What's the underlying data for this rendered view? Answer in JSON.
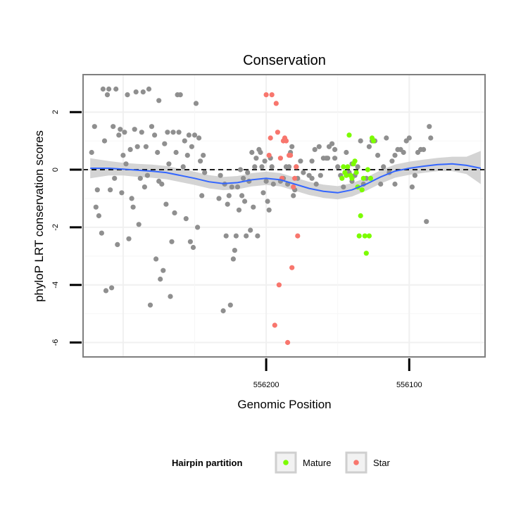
{
  "chart_data": {
    "type": "scatter",
    "title": "Conservation",
    "xlabel": "Genomic Position",
    "ylabel": "phyloP LRT conservation scores",
    "x_reversed": true,
    "xlim": [
      556047,
      556328
    ],
    "ylim": [
      -6.5,
      3.3
    ],
    "x_ticks": [
      556200,
      556100
    ],
    "x_tick_labels": [
      "556200",
      "556100"
    ],
    "y_ticks": [
      2,
      0,
      -2,
      -4,
      -6
    ],
    "y_tick_labels": [
      "2",
      "0",
      "-2",
      "-4",
      "-6"
    ],
    "grid": true,
    "reference_line": {
      "y": 0,
      "style": "dashed",
      "color": "#000000"
    },
    "legend": {
      "title": "Hairpin partition",
      "position": "bottom",
      "entries": [
        {
          "label": "Mature",
          "color": "#7cfc00"
        },
        {
          "label": "Star",
          "color": "#f8766d"
        }
      ]
    },
    "colors": {
      "other": "#8f8f8f",
      "Mature": "#7cfc00",
      "Star": "#f8766d",
      "smooth_line": "#3366ff",
      "smooth_band": "#cccccc"
    },
    "smooth": {
      "x": [
        556323,
        556310,
        556300,
        556290,
        556280,
        556270,
        556260,
        556250,
        556240,
        556230,
        556220,
        556210,
        556200,
        556190,
        556180,
        556170,
        556160,
        556150,
        556140,
        556130,
        556120,
        556110,
        556100,
        556090,
        556080,
        556070,
        556060,
        556050
      ],
      "y": [
        0.05,
        0.05,
        0.02,
        -0.02,
        -0.05,
        -0.1,
        -0.2,
        -0.3,
        -0.42,
        -0.48,
        -0.45,
        -0.35,
        -0.3,
        -0.35,
        -0.5,
        -0.65,
        -0.75,
        -0.8,
        -0.7,
        -0.5,
        -0.25,
        -0.05,
        0.05,
        0.12,
        0.18,
        0.2,
        0.15,
        0.05
      ],
      "lower": [
        -0.3,
        -0.2,
        -0.2,
        -0.25,
        -0.28,
        -0.33,
        -0.43,
        -0.53,
        -0.65,
        -0.71,
        -0.68,
        -0.58,
        -0.53,
        -0.58,
        -0.73,
        -0.88,
        -0.98,
        -1.03,
        -0.93,
        -0.73,
        -0.48,
        -0.28,
        -0.18,
        -0.11,
        -0.05,
        -0.05,
        -0.15,
        -0.5
      ],
      "upper": [
        0.4,
        0.3,
        0.24,
        0.2,
        0.18,
        0.13,
        0.03,
        -0.07,
        -0.19,
        -0.25,
        -0.22,
        -0.12,
        -0.07,
        -0.12,
        -0.27,
        -0.42,
        -0.52,
        -0.57,
        -0.47,
        -0.27,
        -0.02,
        0.18,
        0.28,
        0.35,
        0.41,
        0.45,
        0.45,
        0.65
      ]
    },
    "series": [
      {
        "name": "",
        "group": "other",
        "points": [
          [
            556322,
            0.6
          ],
          [
            556320,
            1.5
          ],
          [
            556319,
            -1.3
          ],
          [
            556318,
            -0.7
          ],
          [
            556317,
            -1.6
          ],
          [
            556315,
            -2.2
          ],
          [
            556314,
            2.8
          ],
          [
            556313,
            1.0
          ],
          [
            556312,
            -4.2
          ],
          [
            556311,
            2.6
          ],
          [
            556310,
            2.8
          ],
          [
            556309,
            -0.7
          ],
          [
            556308,
            -4.1
          ],
          [
            556307,
            1.5
          ],
          [
            556306,
            -0.3
          ],
          [
            556305,
            2.8
          ],
          [
            556304,
            -2.6
          ],
          [
            556303,
            1.2
          ],
          [
            556302,
            1.4
          ],
          [
            556301,
            -0.8
          ],
          [
            556300,
            0.5
          ],
          [
            556299,
            1.3
          ],
          [
            556298,
            0.2
          ],
          [
            556297,
            2.6
          ],
          [
            556296,
            -2.4
          ],
          [
            556295,
            0.7
          ],
          [
            556294,
            -1.0
          ],
          [
            556293,
            -1.3
          ],
          [
            556292,
            1.4
          ],
          [
            556291,
            2.7
          ],
          [
            556290,
            0.8
          ],
          [
            556289,
            -1.9
          ],
          [
            556288,
            -0.3
          ],
          [
            556287,
            1.3
          ],
          [
            556286,
            2.7
          ],
          [
            556285,
            -0.6
          ],
          [
            556284,
            0.8
          ],
          [
            556283,
            -0.2
          ],
          [
            556282,
            2.8
          ],
          [
            556281,
            -4.7
          ],
          [
            556280,
            1.5
          ],
          [
            556278,
            1.2
          ],
          [
            556277,
            -3.1
          ],
          [
            556276,
            0.6
          ],
          [
            556275,
            2.4
          ],
          [
            556274,
            -3.8
          ],
          [
            556273,
            -0.5
          ],
          [
            556272,
            -3.5
          ],
          [
            556271,
            0.9
          ],
          [
            556270,
            -1.2
          ],
          [
            556269,
            1.3
          ],
          [
            556268,
            0.2
          ],
          [
            556267,
            -4.4
          ],
          [
            556266,
            -2.5
          ],
          [
            556265,
            1.3
          ],
          [
            556264,
            -1.5
          ],
          [
            556263,
            0.6
          ],
          [
            556262,
            2.6
          ],
          [
            556261,
            1.3
          ],
          [
            556260,
            2.6
          ],
          [
            556258,
            0.1
          ],
          [
            556257,
            1.0
          ],
          [
            556256,
            -1.7
          ],
          [
            556255,
            0.5
          ],
          [
            556254,
            1.2
          ],
          [
            556253,
            -2.5
          ],
          [
            556252,
            0.8
          ],
          [
            556251,
            -2.7
          ],
          [
            556250,
            1.2
          ],
          [
            556249,
            2.3
          ],
          [
            556248,
            -2.0
          ],
          [
            556247,
            1.1
          ],
          [
            556246,
            0.3
          ],
          [
            556245,
            -0.9
          ],
          [
            556244,
            0.5
          ],
          [
            556243,
            -0.1
          ],
          [
            556233,
            -1.0
          ],
          [
            556232,
            -0.2
          ],
          [
            556230,
            -4.9
          ],
          [
            556229,
            -0.5
          ],
          [
            556228,
            -2.3
          ],
          [
            556227,
            -1.2
          ],
          [
            556226,
            -0.9
          ],
          [
            556225,
            -4.7
          ],
          [
            556224,
            -0.6
          ],
          [
            556223,
            -3.1
          ],
          [
            556222,
            -2.8
          ],
          [
            556221,
            -2.3
          ],
          [
            556220,
            -0.6
          ],
          [
            556219,
            -1.4
          ],
          [
            556218,
            0.0
          ],
          [
            556217,
            -0.9
          ],
          [
            556216,
            -0.3
          ],
          [
            556215,
            -1.1
          ],
          [
            556214,
            -2.3
          ],
          [
            556213,
            -0.1
          ],
          [
            556212,
            -0.4
          ],
          [
            556211,
            -2.1
          ],
          [
            556210,
            0.6
          ],
          [
            556209,
            -1.3
          ],
          [
            556208,
            0.1
          ],
          [
            556207,
            0.4
          ],
          [
            556206,
            -2.3
          ],
          [
            556205,
            0.7
          ],
          [
            556204,
            0.6
          ],
          [
            556203,
            0.1
          ],
          [
            556202,
            -0.8
          ],
          [
            556201,
            0.3
          ],
          [
            556200,
            -0.4
          ],
          [
            556199,
            -1.1
          ],
          [
            556198,
            -1.4
          ],
          [
            556197,
            0.4
          ],
          [
            556196,
            0.1
          ],
          [
            556195,
            -0.5
          ],
          [
            556188,
            -0.3
          ],
          [
            556186,
            0.1
          ],
          [
            556185,
            -0.5
          ],
          [
            556184,
            0.1
          ],
          [
            556183,
            0.6
          ],
          [
            556182,
            0.8
          ],
          [
            556181,
            -0.9
          ],
          [
            556180,
            -0.7
          ],
          [
            556179,
            0.1
          ],
          [
            556178,
            -0.3
          ],
          [
            556176,
            0.3
          ],
          [
            556174,
            -0.1
          ],
          [
            556170,
            -0.2
          ],
          [
            556168,
            0.3
          ],
          [
            556166,
            0.7
          ],
          [
            556165,
            -0.5
          ],
          [
            556163,
            0.8
          ],
          [
            556162,
            -0.2
          ],
          [
            556160,
            0.4
          ],
          [
            556158,
            0.4
          ],
          [
            556157,
            0.4
          ],
          [
            556156,
            0.8
          ],
          [
            556154,
            0.9
          ],
          [
            556152,
            0.7
          ],
          [
            556150,
            0.1
          ],
          [
            556148,
            -0.2
          ],
          [
            556146,
            -0.6
          ],
          [
            556144,
            0.6
          ],
          [
            556142,
            -0.1
          ],
          [
            556140,
            -0.4
          ],
          [
            556138,
            -0.2
          ],
          [
            556136,
            0.1
          ],
          [
            556134,
            1.0
          ],
          [
            556132,
            -0.5
          ],
          [
            556130,
            -0.3
          ],
          [
            556128,
            0.8
          ],
          [
            556126,
            1.0
          ],
          [
            556124,
            1.0
          ],
          [
            556122,
            0.5
          ],
          [
            556120,
            -0.5
          ],
          [
            556118,
            0.1
          ],
          [
            556116,
            1.1
          ],
          [
            556114,
            -0.1
          ],
          [
            556112,
            0.3
          ],
          [
            556110,
            -0.5
          ],
          [
            556108,
            0.7
          ],
          [
            556106,
            0.7
          ],
          [
            556104,
            0.6
          ],
          [
            556102,
            1.0
          ],
          [
            556100,
            1.1
          ],
          [
            556098,
            -0.6
          ],
          [
            556096,
            -0.2
          ],
          [
            556094,
            0.6
          ],
          [
            556092,
            0.7
          ],
          [
            556090,
            0.7
          ],
          [
            556088,
            -1.8
          ],
          [
            556086,
            1.5
          ],
          [
            556085,
            1.1
          ],
          [
            556140,
            0.2
          ],
          [
            556110,
            0.5
          ],
          [
            556275,
            -0.4
          ],
          [
            556190,
            -0.4
          ],
          [
            556168,
            -0.3
          ],
          [
            556152,
            0.4
          ]
        ]
      },
      {
        "name": "Mature",
        "group": "Mature",
        "points": [
          [
            556147,
            -0.3
          ],
          [
            556146,
            0.1
          ],
          [
            556145,
            -0.1
          ],
          [
            556144,
            -0.2
          ],
          [
            556143,
            0.1
          ],
          [
            556142,
            1.2
          ],
          [
            556141,
            -0.2
          ],
          [
            556140,
            -0.3
          ],
          [
            556139,
            0.2
          ],
          [
            556138,
            0.3
          ],
          [
            556137,
            -0.1
          ],
          [
            556136,
            -0.6
          ],
          [
            556135,
            -2.3
          ],
          [
            556134,
            -1.6
          ],
          [
            556133,
            -0.7
          ],
          [
            556132,
            -0.3
          ],
          [
            556131,
            -2.3
          ],
          [
            556130,
            -2.9
          ],
          [
            556129,
            0.0
          ],
          [
            556128,
            -2.3
          ],
          [
            556127,
            -0.3
          ],
          [
            556126,
            1.1
          ],
          [
            556125,
            1.0
          ]
        ]
      },
      {
        "name": "Star",
        "group": "Star",
        "points": [
          [
            556200,
            2.6
          ],
          [
            556198,
            0.5
          ],
          [
            556197,
            1.1
          ],
          [
            556196,
            2.6
          ],
          [
            556194,
            -5.4
          ],
          [
            556193,
            2.3
          ],
          [
            556192,
            1.3
          ],
          [
            556191,
            -4.0
          ],
          [
            556190,
            0.4
          ],
          [
            556189,
            -0.3
          ],
          [
            556188,
            1.0
          ],
          [
            556187,
            1.1
          ],
          [
            556186,
            1.0
          ],
          [
            556185,
            -6.0
          ],
          [
            556184,
            0.5
          ],
          [
            556183,
            0.5
          ],
          [
            556182,
            -3.4
          ],
          [
            556181,
            -0.6
          ],
          [
            556180,
            -0.3
          ],
          [
            556179,
            0.1
          ],
          [
            556178,
            -2.3
          ]
        ]
      }
    ]
  }
}
